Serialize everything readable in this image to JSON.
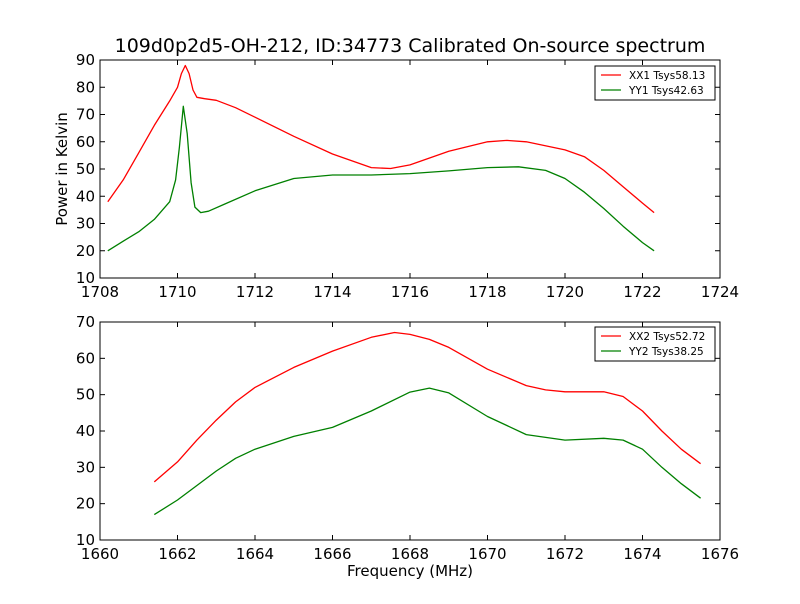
{
  "figure": {
    "title": "109d0p2d5-OH-212, ID:34773 Calibrated On-source spectrum",
    "xlabel": "Frequency (MHz)",
    "ylabel": "Power in Kelvin"
  },
  "colors": {
    "xx": "#ff0000",
    "yy": "#008000",
    "axes": "#000000",
    "background": "#ffffff"
  },
  "chart_data": [
    {
      "type": "line",
      "title": "109d0p2d5-OH-212, ID:34773 Calibrated On-source spectrum",
      "xlabel": "",
      "ylabel": "Power in Kelvin",
      "xlim": [
        1708,
        1724
      ],
      "ylim": [
        10,
        90
      ],
      "xticks": [
        "1708",
        "1710",
        "1712",
        "1714",
        "1716",
        "1718",
        "1720",
        "1722",
        "1724"
      ],
      "yticks": [
        "10",
        "20",
        "30",
        "40",
        "50",
        "60",
        "70",
        "80",
        "90"
      ],
      "legend": "top-right",
      "grid": false,
      "series": [
        {
          "name": "XX1 Tsys58.13",
          "color": "#ff0000",
          "x": [
            1708.2,
            1708.6,
            1709.0,
            1709.4,
            1709.8,
            1710.0,
            1710.1,
            1710.2,
            1710.3,
            1710.4,
            1710.5,
            1710.7,
            1711.0,
            1711.5,
            1712.0,
            1713.0,
            1714.0,
            1715.0,
            1715.5,
            1716.0,
            1717.0,
            1718.0,
            1718.5,
            1719.0,
            1720.0,
            1720.5,
            1721.0,
            1721.5,
            1722.0,
            1722.3
          ],
          "y": [
            38,
            46,
            56,
            66,
            75,
            80,
            85,
            88,
            85,
            79,
            76.3,
            75.8,
            75.2,
            72.5,
            69,
            62,
            55.5,
            50.5,
            50.2,
            51.5,
            56.5,
            60,
            60.5,
            60,
            57,
            54.5,
            49.5,
            43.5,
            37.5,
            34
          ]
        },
        {
          "name": "YY1 Tsys42.63",
          "color": "#008000",
          "x": [
            1708.2,
            1708.6,
            1709.0,
            1709.4,
            1709.8,
            1709.95,
            1710.05,
            1710.15,
            1710.25,
            1710.35,
            1710.45,
            1710.6,
            1710.8,
            1711.2,
            1712.0,
            1713.0,
            1714.0,
            1715.0,
            1716.0,
            1717.0,
            1718.0,
            1718.8,
            1719.5,
            1720.0,
            1720.5,
            1721.0,
            1721.5,
            1722.0,
            1722.3
          ],
          "y": [
            20,
            23.5,
            27,
            31.5,
            38,
            46,
            58,
            73,
            63,
            45,
            36,
            34,
            34.5,
            37,
            42,
            46.5,
            47.8,
            47.8,
            48.3,
            49.3,
            50.5,
            50.8,
            49.5,
            46.5,
            41.5,
            35.5,
            29,
            23,
            20
          ]
        }
      ]
    },
    {
      "type": "line",
      "title": "",
      "xlabel": "Frequency (MHz)",
      "ylabel": "",
      "xlim": [
        1660,
        1676
      ],
      "ylim": [
        10,
        70
      ],
      "xticks": [
        "1660",
        "1662",
        "1664",
        "1666",
        "1668",
        "1670",
        "1672",
        "1674",
        "1676"
      ],
      "yticks": [
        "10",
        "20",
        "30",
        "40",
        "50",
        "60",
        "70"
      ],
      "legend": "top-right",
      "grid": false,
      "series": [
        {
          "name": "XX2 Tsys52.72",
          "color": "#ff0000",
          "x": [
            1661.4,
            1662.0,
            1662.5,
            1663.0,
            1663.5,
            1664.0,
            1665.0,
            1666.0,
            1667.0,
            1667.6,
            1668.0,
            1668.5,
            1669.0,
            1670.0,
            1671.0,
            1671.5,
            1672.0,
            1672.5,
            1673.0,
            1673.5,
            1674.0,
            1674.5,
            1675.0,
            1675.5
          ],
          "y": [
            26,
            31.5,
            37.5,
            43,
            48,
            52,
            57.5,
            62,
            65.8,
            67.1,
            66.6,
            65.2,
            63,
            57,
            52.5,
            51.3,
            50.8,
            50.8,
            50.8,
            49.5,
            45.5,
            40,
            35,
            31
          ]
        },
        {
          "name": "YY2 Tsys38.25",
          "color": "#008000",
          "x": [
            1661.4,
            1662.0,
            1662.5,
            1663.0,
            1663.5,
            1664.0,
            1665.0,
            1666.0,
            1667.0,
            1668.0,
            1668.5,
            1669.0,
            1670.0,
            1671.0,
            1672.0,
            1673.0,
            1673.5,
            1674.0,
            1674.5,
            1675.0,
            1675.5
          ],
          "y": [
            17,
            21,
            25,
            29,
            32.5,
            35,
            38.5,
            41,
            45.5,
            50.7,
            51.8,
            50.5,
            44,
            39,
            37.5,
            38,
            37.5,
            35,
            30,
            25.5,
            21.5
          ]
        }
      ]
    }
  ]
}
